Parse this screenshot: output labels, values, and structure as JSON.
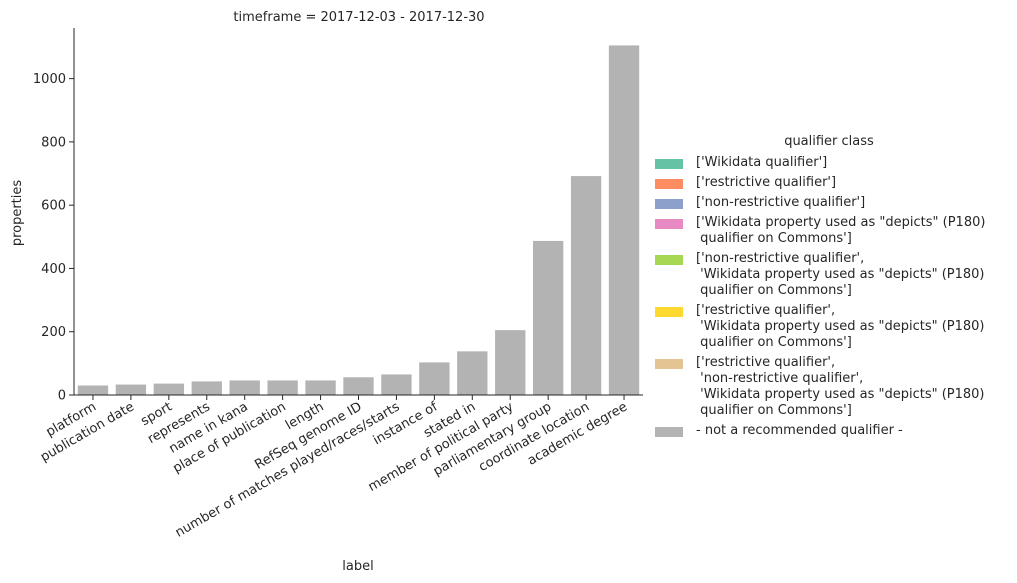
{
  "chart_data": {
    "type": "bar",
    "title": "timeframe = 2017-12-03 - 2017-12-30",
    "xlabel": "label",
    "ylabel": "properties",
    "ylim": [
      0,
      1160
    ],
    "yticks": [
      0,
      200,
      400,
      600,
      800,
      1000
    ],
    "categories": [
      "platform",
      "publication date",
      "sport",
      "represents",
      "name in kana",
      "place of publication",
      "length",
      "RefSeq genome ID",
      "number of matches played/races/starts",
      "instance of",
      "stated in",
      "member of political party",
      "parliamentary group",
      "coordinate location",
      "academic degree"
    ],
    "values": [
      30,
      33,
      36,
      43,
      46,
      46,
      46,
      56,
      65,
      103,
      138,
      205,
      487,
      692,
      1105
    ],
    "bar_color": "#b3b3b3",
    "grid": false,
    "legend": {
      "title": "qualifier class",
      "placement": "right",
      "entries": [
        {
          "label": "['Wikidata qualifier']",
          "color": "#66c2a5"
        },
        {
          "label": "['restrictive qualifier']",
          "color": "#fc8d62"
        },
        {
          "label": "['non-restrictive qualifier']",
          "color": "#8da0cb"
        },
        {
          "label": "['Wikidata property used as \"depicts\" (P180)\n qualifier on Commons']",
          "color": "#e78ac3"
        },
        {
          "label": "['non-restrictive qualifier',\n 'Wikidata property used as \"depicts\" (P180)\n qualifier on Commons']",
          "color": "#a6d854"
        },
        {
          "label": "['restrictive qualifier',\n 'Wikidata property used as \"depicts\" (P180)\n qualifier on Commons']",
          "color": "#ffd92f"
        },
        {
          "label": "['restrictive qualifier',\n 'non-restrictive qualifier',\n 'Wikidata property used as \"depicts\" (P180)\n qualifier on Commons']",
          "color": "#e5c494"
        },
        {
          "label": "- not a recommended qualifier -",
          "color": "#b3b3b3"
        }
      ]
    }
  }
}
